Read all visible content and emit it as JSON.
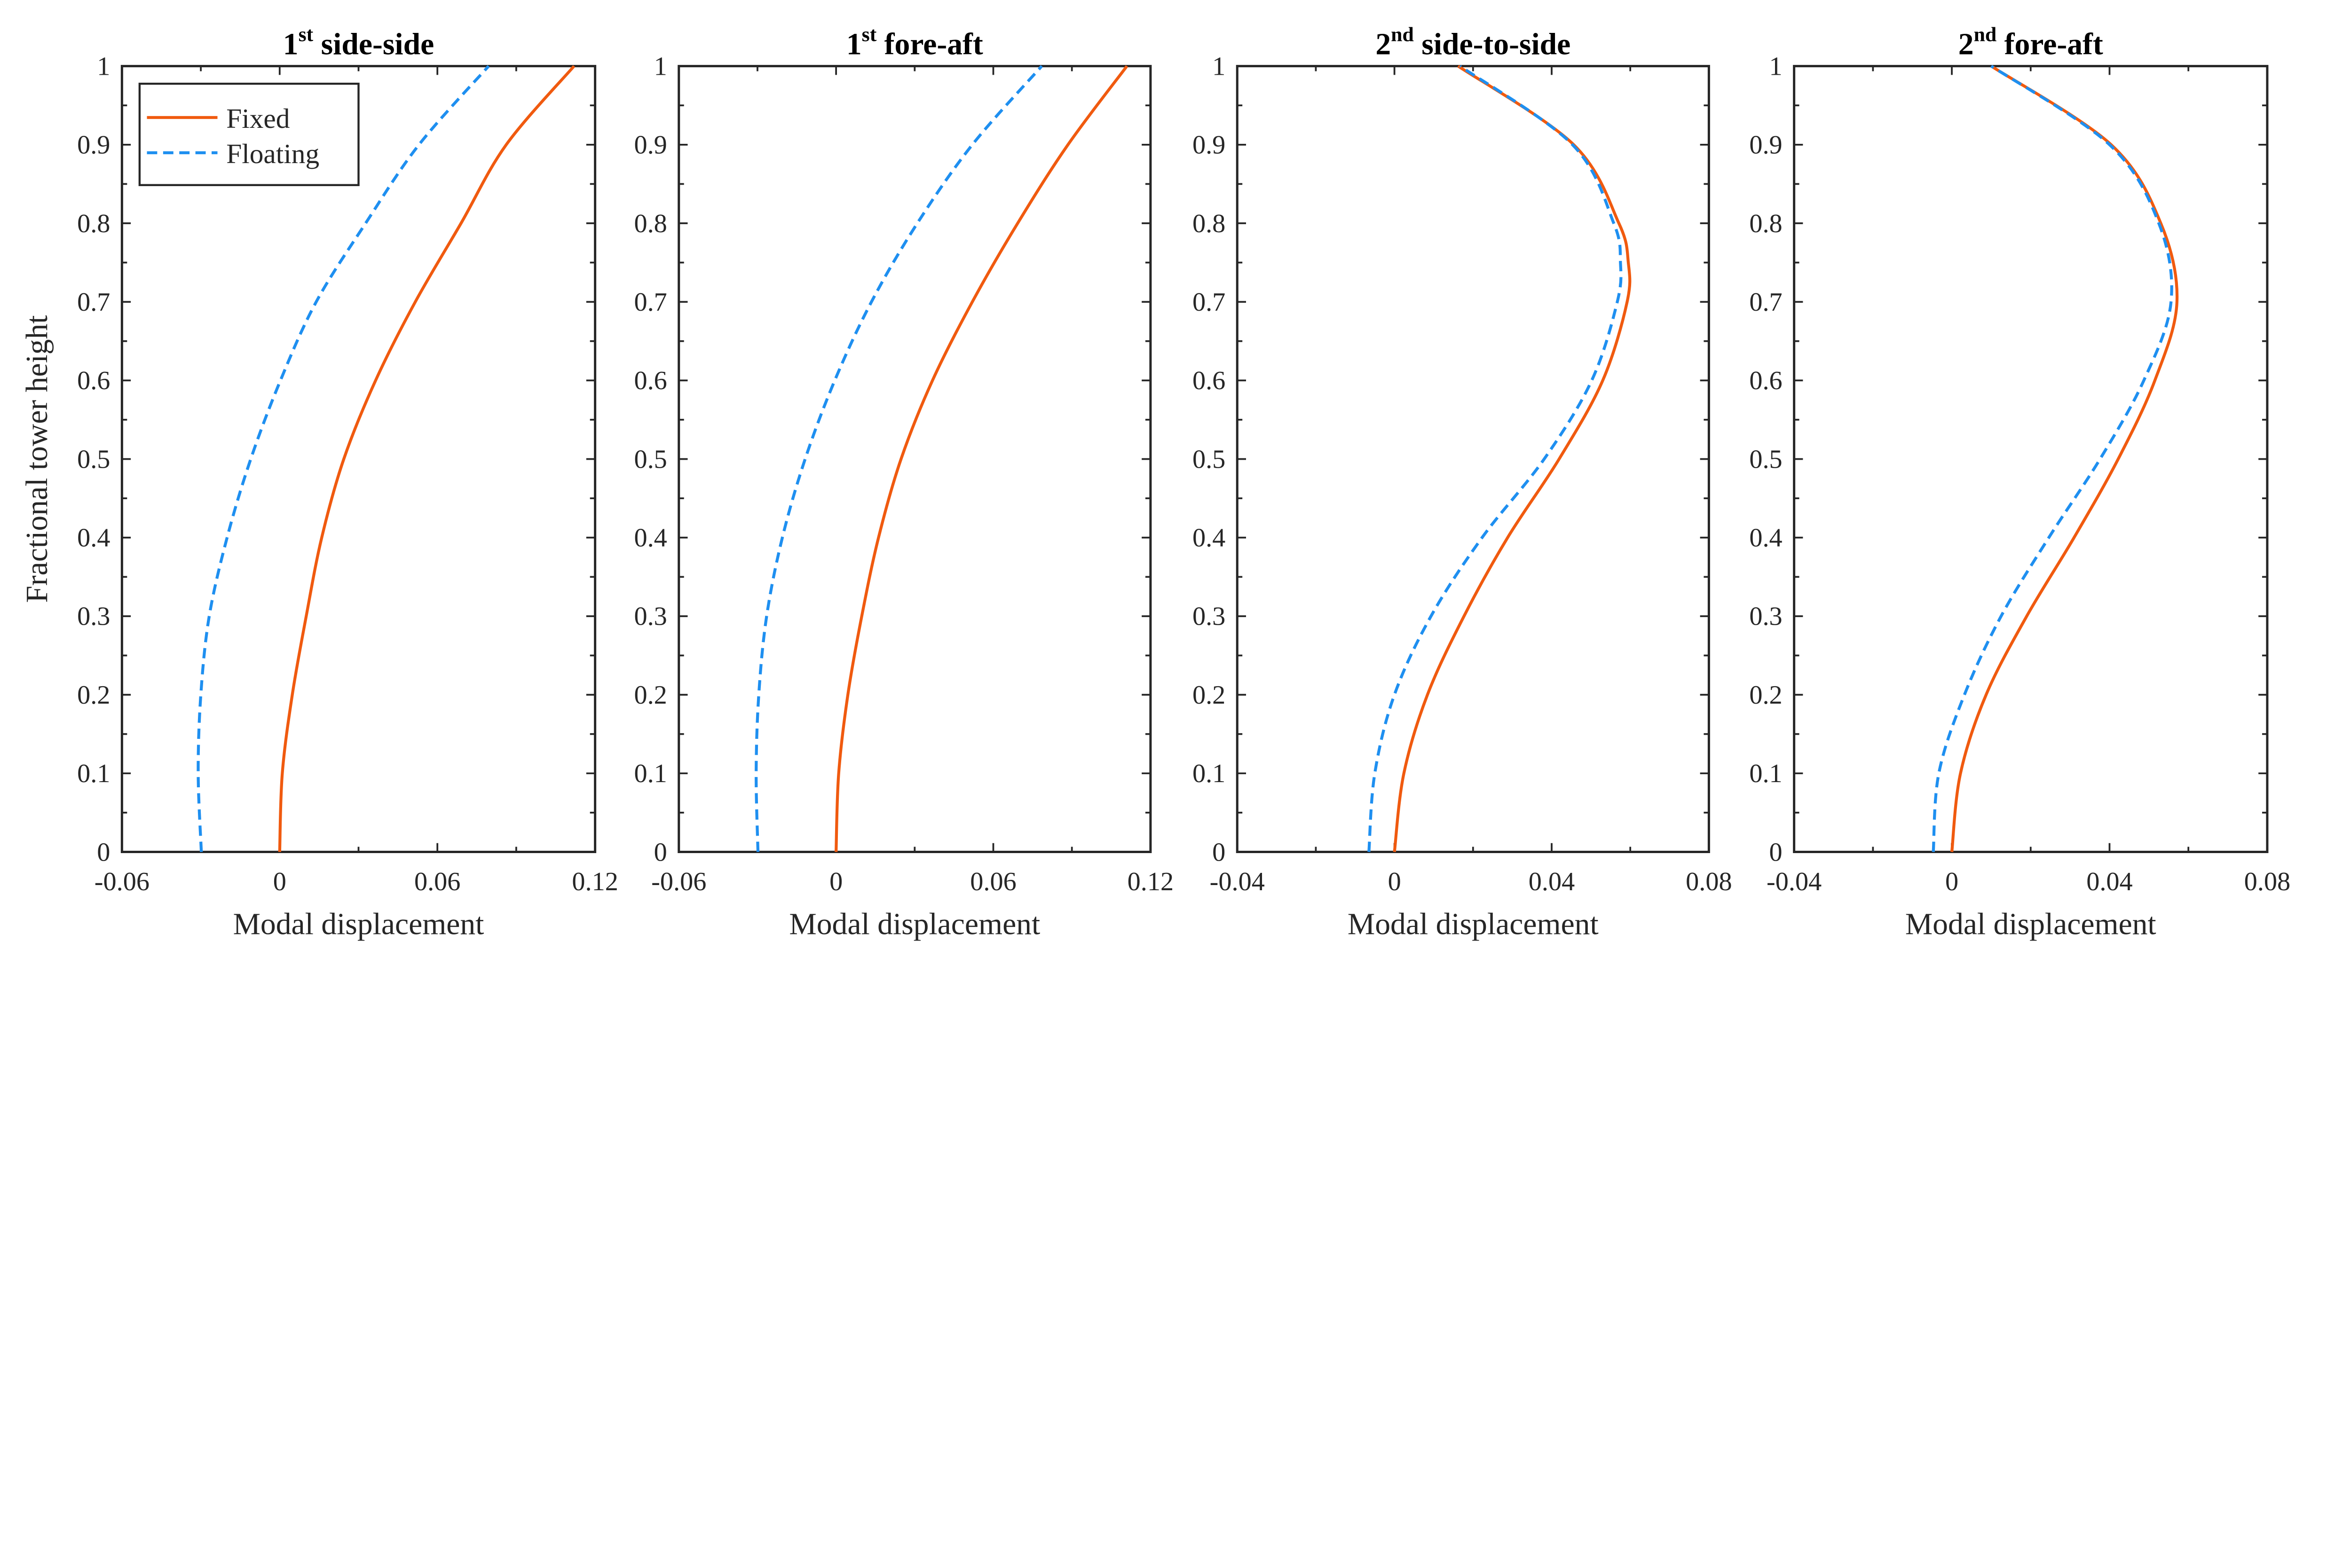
{
  "chart_data": [
    {
      "type": "line",
      "title": {
        "ordinal": "1",
        "sup": "st",
        "text": " side-side"
      },
      "xlabel": "Modal displacement",
      "ylabel": "Fractional tower height",
      "xlim": [
        -0.06,
        0.12
      ],
      "ylim": [
        0,
        1
      ],
      "xticks": [
        "-0.06",
        "0",
        "0.06",
        "0.12"
      ],
      "xtick_values": [
        -0.06,
        0,
        0.06,
        0.12
      ],
      "xminor_step": 0.03,
      "yticks": [
        "0",
        "0.1",
        "0.2",
        "0.3",
        "0.4",
        "0.5",
        "0.6",
        "0.7",
        "0.8",
        "0.9",
        "1"
      ],
      "legend": {
        "placement": "top-left",
        "entries": [
          "Fixed",
          "Floating"
        ]
      },
      "y": [
        0,
        0.1,
        0.2,
        0.3,
        0.4,
        0.5,
        0.6,
        0.7,
        0.8,
        0.9,
        1.0
      ],
      "series": [
        {
          "name": "Fixed",
          "color": "#F05A0F",
          "style": "solid",
          "x": [
            0,
            0.001,
            0.0048,
            0.0101,
            0.016,
            0.0244,
            0.0365,
            0.0516,
            0.069,
            0.0862,
            0.112
          ]
        },
        {
          "name": "Floating",
          "color": "#1E8FF0",
          "style": "dashed",
          "x": [
            -0.0298,
            -0.031,
            -0.03,
            -0.0268,
            -0.02,
            -0.011,
            0.0003,
            0.0139,
            0.0327,
            0.053,
            0.0795
          ]
        }
      ]
    },
    {
      "type": "line",
      "title": {
        "ordinal": "1",
        "sup": "st",
        "text": " fore-aft"
      },
      "xlabel": "Modal displacement",
      "xlim": [
        -0.06,
        0.12
      ],
      "ylim": [
        0,
        1
      ],
      "xticks": [
        "-0.06",
        "0",
        "0.06",
        "0.12"
      ],
      "xtick_values": [
        -0.06,
        0,
        0.06,
        0.12
      ],
      "xminor_step": 0.03,
      "yticks": [
        "0",
        "0.1",
        "0.2",
        "0.3",
        "0.4",
        "0.5",
        "0.6",
        "0.7",
        "0.8",
        "0.9",
        "1"
      ],
      "y": [
        0,
        0.1,
        0.2,
        0.3,
        0.4,
        0.5,
        0.6,
        0.7,
        0.8,
        0.9,
        1.0
      ],
      "series": [
        {
          "name": "Fixed",
          "color": "#F05A0F",
          "style": "solid",
          "x": [
            0,
            0.001,
            0.0045,
            0.0098,
            0.0162,
            0.0248,
            0.0368,
            0.052,
            0.0693,
            0.0885,
            0.111
          ]
        },
        {
          "name": "Floating",
          "color": "#1E8FF0",
          "style": "dashed",
          "x": [
            -0.0298,
            -0.0305,
            -0.0295,
            -0.0265,
            -0.0205,
            -0.0118,
            -0.0005,
            0.0135,
            0.031,
            0.052,
            0.0785
          ]
        }
      ]
    },
    {
      "type": "line",
      "title": {
        "ordinal": "2",
        "sup": "nd",
        "text": " side-to-side"
      },
      "xlabel": "Modal displacement",
      "xlim": [
        -0.04,
        0.08
      ],
      "ylim": [
        0,
        1
      ],
      "xticks": [
        "-0.04",
        "0",
        "0.04",
        "0.08"
      ],
      "xtick_values": [
        -0.04,
        0,
        0.04,
        0.08
      ],
      "xminor_step": 0.02,
      "yticks": [
        "0",
        "0.1",
        "0.2",
        "0.3",
        "0.4",
        "0.5",
        "0.6",
        "0.7",
        "0.8",
        "0.9",
        "1"
      ],
      "y": [
        0,
        0.1,
        0.2,
        0.3,
        0.4,
        0.5,
        0.6,
        0.7,
        0.75,
        0.8,
        0.9,
        1.0
      ],
      "series": [
        {
          "name": "Fixed",
          "color": "#F05A0F",
          "style": "solid",
          "x": [
            0,
            0.0024,
            0.0084,
            0.0177,
            0.0288,
            0.0419,
            0.053,
            0.0592,
            0.0595,
            0.0571,
            0.0456,
            0.0162
          ]
        },
        {
          "name": "Floating",
          "color": "#1E8FF0",
          "style": "dashed",
          "x": [
            -0.0065,
            -0.005,
            0,
            0.0093,
            0.0223,
            0.0381,
            0.0502,
            0.0567,
            0.0575,
            0.0558,
            0.0453,
            0.0167
          ]
        }
      ]
    },
    {
      "type": "line",
      "title": {
        "ordinal": "2",
        "sup": "nd",
        "text": " fore-aft"
      },
      "xlabel": "Modal displacement",
      "xlim": [
        -0.04,
        0.08
      ],
      "ylim": [
        0,
        1
      ],
      "xticks": [
        "-0.04",
        "0",
        "0.04",
        "0.08"
      ],
      "xtick_values": [
        -0.04,
        0,
        0.04,
        0.08
      ],
      "xminor_step": 0.02,
      "yticks": [
        "0",
        "0.1",
        "0.2",
        "0.3",
        "0.4",
        "0.5",
        "0.6",
        "0.7",
        "0.8",
        "0.9",
        "1"
      ],
      "y": [
        0,
        0.1,
        0.2,
        0.3,
        0.4,
        0.5,
        0.6,
        0.7,
        0.8,
        0.9,
        1.0
      ],
      "series": [
        {
          "name": "Fixed",
          "color": "#F05A0F",
          "style": "solid",
          "x": [
            0,
            0.0022,
            0.0087,
            0.019,
            0.031,
            0.0422,
            0.0515,
            0.0571,
            0.053,
            0.0404,
            0.01
          ]
        },
        {
          "name": "Floating",
          "color": "#1E8FF0",
          "style": "dashed",
          "x": [
            -0.0047,
            -0.0033,
            0.0032,
            0.0125,
            0.0246,
            0.0376,
            0.0487,
            0.0556,
            0.0525,
            0.04,
            0.01
          ]
        }
      ]
    }
  ]
}
